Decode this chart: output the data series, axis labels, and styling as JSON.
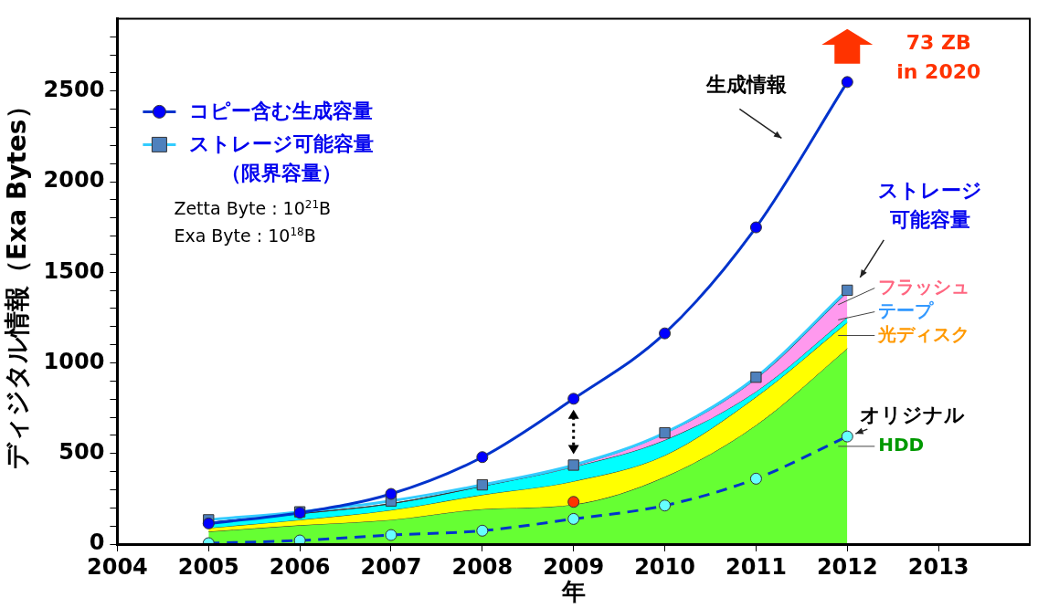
{
  "chart_data": {
    "type": "line",
    "xlabel": "年",
    "ylabel": "ディジタル情報（Exa Bytes）",
    "xlim": [
      2004,
      2014
    ],
    "xticks": [
      2004,
      2005,
      2006,
      2007,
      2008,
      2009,
      2010,
      2011,
      2012,
      2013
    ],
    "ylim": [
      0,
      2900
    ],
    "yticks": [
      0,
      {
        "value": 100,
        "label": null
      },
      {
        "value": 200,
        "label": null
      },
      {
        "value": 300,
        "label": null
      },
      {
        "value": 400,
        "label": null
      },
      500,
      {
        "value": 600,
        "label": null
      },
      {
        "value": 700,
        "label": null
      },
      {
        "value": 800,
        "label": null
      },
      {
        "value": 900,
        "label": null
      },
      1000,
      {
        "value": 1100,
        "label": null
      },
      {
        "value": 1200,
        "label": null
      },
      {
        "value": 1300,
        "label": null
      },
      {
        "value": 1400,
        "label": null
      },
      1500,
      {
        "value": 1600,
        "label": null
      },
      {
        "value": 1700,
        "label": null
      },
      {
        "value": 1800,
        "label": null
      },
      {
        "value": 1900,
        "label": null
      },
      2000,
      {
        "value": 2100,
        "label": null
      },
      {
        "value": 2200,
        "label": null
      },
      {
        "value": 2300,
        "label": null
      },
      {
        "value": 2400,
        "label": null
      },
      2500,
      {
        "value": 2600,
        "label": null
      },
      {
        "value": 2700,
        "label": null
      },
      {
        "value": 2800,
        "label": null
      }
    ],
    "legend": "top left",
    "stacked": true,
    "x": [
      2005,
      2006,
      2007,
      2008,
      2009,
      2010,
      2011,
      2012
    ],
    "series": [
      {
        "name": "HDD",
        "type": "area",
        "color": "#66ff33",
        "values": [
          69,
          104,
          134,
          193,
          218,
          371,
          656,
          1079
        ]
      },
      {
        "name": "光ディスク",
        "type": "area",
        "color": "#ffff00",
        "values": [
          20,
          30,
          54,
          79,
          129,
          119,
          156,
          144
        ]
      },
      {
        "name": "テープ",
        "type": "area",
        "color": "#00ffff",
        "values": [
          30,
          34,
          35,
          48,
          79,
          84,
          30,
          29
        ]
      },
      {
        "name": "フラッシュ",
        "type": "area",
        "color": "#ff99ee",
        "values": [
          0,
          0,
          0,
          0,
          5,
          36,
          70,
          138
        ]
      },
      {
        "name": "コピー含む生成容量",
        "type": "line",
        "marker": "circle",
        "color": "#0033cc",
        "values": [
          114,
          173,
          277,
          480,
          802,
          1163,
          1748,
          2550
        ]
      },
      {
        "name": "ストレージ可能容量（限界容量）",
        "type": "line",
        "marker": "square",
        "color": "#33ccff",
        "values": [
          134,
          178,
          238,
          327,
          436,
          614,
          921,
          1401
        ]
      },
      {
        "name": "オリジナル",
        "type": "line",
        "marker": "circle",
        "line_style": "dashed",
        "color": "#0033cc",
        "values": [
          5,
          20,
          50,
          74,
          139,
          213,
          361,
          594
        ]
      },
      {
        "type": "scatter",
        "marker": "circle",
        "color": "#ff3300",
        "x": [
          2009
        ],
        "values": [
          233
        ]
      }
    ],
    "annotations": [
      "生成情報",
      "ストレージ可能容量",
      "73 ZB\nin 2020",
      "Zetta Byte : 10$^{21}$B",
      "Exa Byte : 10$^{18}$B"
    ]
  }
}
